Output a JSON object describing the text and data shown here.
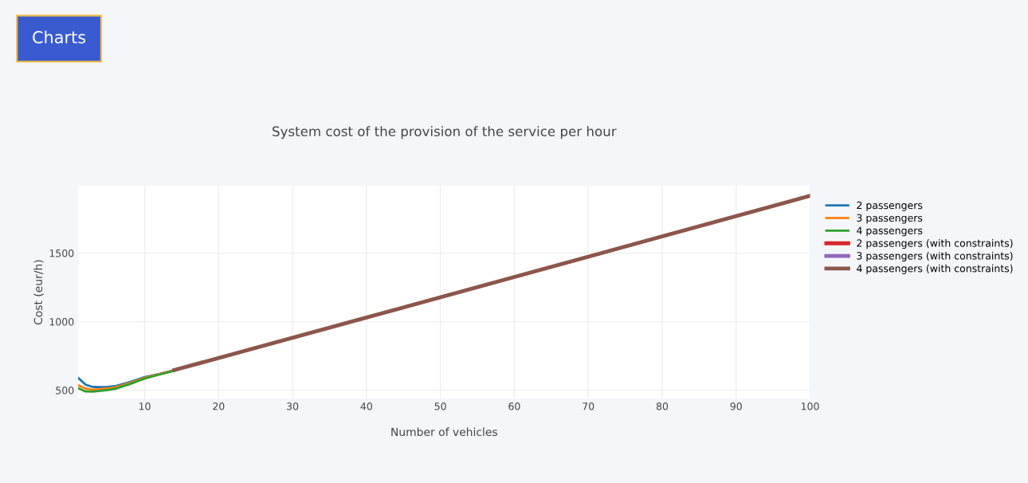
{
  "chart_data": {
    "type": "line",
    "title": "System cost of the provision of the service per hour",
    "xlabel": "Number of vehicles",
    "ylabel": "Cost (eur/h)",
    "annotations": [
      "Charts"
    ],
    "xlim": [
      1,
      100
    ],
    "xticks": [
      10,
      20,
      30,
      40,
      50,
      60,
      70,
      80,
      90,
      100
    ],
    "ylim": [
      440,
      1990
    ],
    "yticks": [
      500,
      1000,
      1500
    ],
    "grid": true,
    "legend": "right",
    "marker": "none",
    "line_style": "solid",
    "series": [
      {
        "name": "2 passengers",
        "color": "#1f77b4",
        "x": [
          1,
          2,
          3,
          4,
          5,
          6,
          8,
          10,
          12,
          14
        ],
        "values": [
          590,
          541,
          524,
          523,
          525,
          530,
          560,
          596,
          620,
          647
        ]
      },
      {
        "name": "3 passengers",
        "color": "#ff7f0e",
        "x": [
          1,
          2,
          3,
          4,
          5,
          6,
          8,
          10,
          12,
          14
        ],
        "values": [
          537,
          512,
          505,
          508,
          513,
          520,
          553,
          590,
          618,
          645
        ]
      },
      {
        "name": "4 passengers",
        "color": "#2ca02c",
        "x": [
          1,
          2,
          3,
          4,
          5,
          6,
          8,
          10,
          12,
          14
        ],
        "values": [
          515,
          491,
          490,
          495,
          502,
          510,
          545,
          585,
          614,
          642
        ]
      },
      {
        "name": "2 passengers (with constraints)",
        "color": "#d62728"
      },
      {
        "name": "3 passengers (with constraints)",
        "color": "#9467bd"
      },
      {
        "name": "4 passengers (with constraints)",
        "color": "#8c564b",
        "x": [
          14,
          40,
          100
        ],
        "values": [
          647,
          1030,
          1918
        ]
      }
    ]
  }
}
